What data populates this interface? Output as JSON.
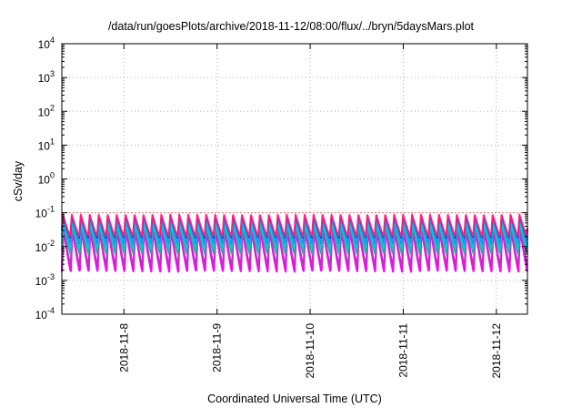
{
  "chart_data": {
    "type": "line",
    "title": "/data/run/goesPlots/archive/2018-11-12/08:00/flux/../bryn/5daysMars.plot",
    "xlabel": "Coordinated Universal Time (UTC)",
    "ylabel": "cSv/day",
    "y_scale": "log",
    "ylim": [
      0.0001,
      10000
    ],
    "y_ticks": [
      {
        "base": "10",
        "exp": "4",
        "value": 10000
      },
      {
        "base": "10",
        "exp": "3",
        "value": 1000
      },
      {
        "base": "10",
        "exp": "2",
        "value": 100
      },
      {
        "base": "10",
        "exp": "1",
        "value": 10
      },
      {
        "base": "10",
        "exp": "0",
        "value": 1
      },
      {
        "base": "10",
        "exp": "-1",
        "value": 0.1
      },
      {
        "base": "10",
        "exp": "-2",
        "value": 0.01
      },
      {
        "base": "10",
        "exp": "-3",
        "value": 0.001
      },
      {
        "base": "10",
        "exp": "-4",
        "value": 0.0001
      }
    ],
    "xlim": [
      "2018-11-07 08:00",
      "2018-11-12 08:00"
    ],
    "x_ticks": [
      "2018-11-8",
      "2018-11-9",
      "2018-11-10",
      "2018-11-11",
      "2018-11-12"
    ],
    "grid": true,
    "legend": "none",
    "threshold_line": {
      "value": 0.1,
      "color": "#ff6a6a",
      "style": "dotted"
    },
    "oscillation": {
      "cycles_per_day": 10.4,
      "shape": "sawtooth"
    },
    "series": [
      {
        "color": "#ff00ff",
        "min": 0.0018,
        "max": 0.032
      },
      {
        "color": "#c030c0",
        "min": 0.0026,
        "max": 0.036
      },
      {
        "color": "#20b2aa",
        "min": 0.006,
        "max": 0.045
      },
      {
        "color": "#00ced1",
        "min": 0.009,
        "max": 0.05
      },
      {
        "color": "#1e90ff",
        "min": 0.012,
        "max": 0.075
      },
      {
        "color": "#1a3aa0",
        "min": 0.018,
        "max": 0.085
      },
      {
        "color": "#ff2080",
        "min": 0.02,
        "max": 0.09
      }
    ]
  }
}
